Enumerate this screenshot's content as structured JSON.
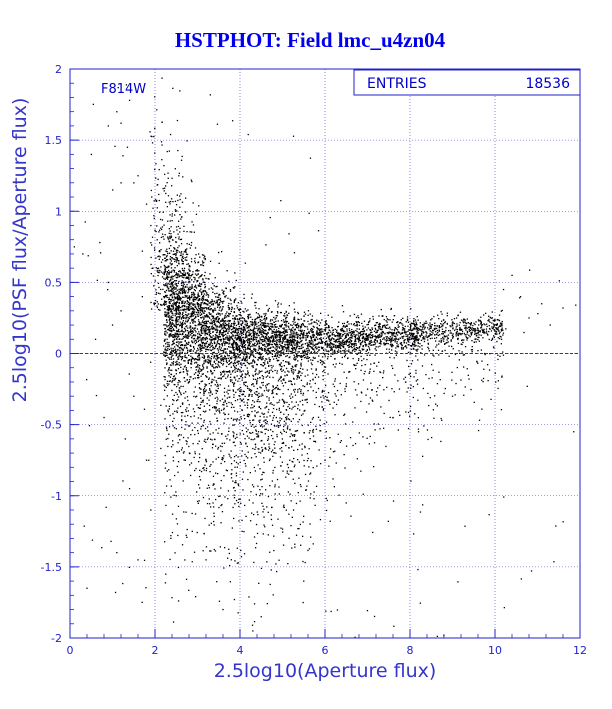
{
  "chart_data": {
    "type": "scatter",
    "title": "HSTPHOT: Field lmc_u4zn04",
    "xlabel": "2.5log10(Aperture flux)",
    "ylabel": "2.5log10(PSF flux/Aperture flux)",
    "xlim": [
      0,
      12
    ],
    "ylim": [
      -2,
      2
    ],
    "x_ticks": [
      "0",
      "2",
      "4",
      "6",
      "8",
      "10",
      "12"
    ],
    "y_ticks": [
      "-2",
      "-1.5",
      "-1",
      "-0.5",
      "0",
      "0.5",
      "1",
      "1.5",
      "2"
    ],
    "grid": true,
    "reference_line_y": 0,
    "filter_label": "F814W",
    "stats": {
      "label": "ENTRIES",
      "value": "18536"
    },
    "series": [
      {
        "points": [
          [
            0.1,
            0.75
          ],
          [
            0.3,
            0.7
          ],
          [
            0.5,
            1.4
          ],
          [
            0.7,
            0.78
          ],
          [
            0.9,
            1.6
          ],
          [
            1.1,
            1.7
          ],
          [
            1.2,
            1.62
          ],
          [
            1.4,
            1.78
          ],
          [
            1.5,
            1.2
          ],
          [
            1.7,
            0.72
          ],
          [
            1.8,
            1.05
          ],
          [
            1.9,
            0.9
          ],
          [
            1.95,
            0.6
          ],
          [
            1.35,
            1.45
          ],
          [
            1.6,
            1.25
          ],
          [
            1.0,
            0.2
          ],
          [
            0.8,
            -0.45
          ],
          [
            1.3,
            -0.6
          ],
          [
            1.5,
            -0.3
          ],
          [
            1.8,
            -0.75
          ],
          [
            1.1,
            -1.4
          ],
          [
            1.6,
            -1.45
          ],
          [
            0.4,
            -1.65
          ],
          [
            0.9,
            0.5
          ],
          [
            1.2,
            0.3
          ],
          [
            1.7,
            0.4
          ],
          [
            1.9,
            -1.1
          ],
          [
            1.4,
            -0.95
          ],
          [
            0.6,
            0.1
          ],
          [
            1.2,
            1.2
          ],
          [
            10.2,
            0.45
          ],
          [
            10.6,
            0.4
          ],
          [
            11.1,
            0.35
          ],
          [
            11.6,
            0.32
          ],
          [
            11.9,
            0.34
          ],
          [
            10.8,
            0.25
          ],
          [
            11.3,
            0.2
          ],
          [
            10.4,
            0.55
          ],
          [
            7.6,
            -0.45
          ],
          [
            8.2,
            -0.55
          ],
          [
            9.0,
            -0.3
          ],
          [
            6.5,
            -1.05
          ],
          [
            6.0,
            -0.75
          ],
          [
            5.5,
            -1.6
          ],
          [
            4.3,
            -1.95
          ],
          [
            4.5,
            -1.85
          ],
          [
            3.2,
            -1.45
          ],
          [
            2.5,
            -1.0
          ],
          [
            3.6,
            -1.8
          ],
          [
            7.0,
            -0.25
          ]
        ],
        "distribution": {
          "description": "dense cloud of 18536 entries",
          "ridge": [
            [
              2.5,
              0.3
            ],
            [
              3.0,
              0.2
            ],
            [
              4.0,
              0.12
            ],
            [
              5.0,
              0.1
            ],
            [
              6.0,
              0.1
            ],
            [
              7.0,
              0.12
            ],
            [
              8.0,
              0.14
            ],
            [
              9.0,
              0.16
            ],
            [
              10.0,
              0.18
            ]
          ],
          "x_range": [
            2.2,
            10.2
          ],
          "peak_x": 3.8
        }
      }
    ],
    "colors": {
      "title": "#0000ee",
      "axis_label": "#3535cc",
      "frame": "#2222cc",
      "grid": "#3a3ad0",
      "reference_line": "#cc0000",
      "points": "#000000"
    }
  }
}
